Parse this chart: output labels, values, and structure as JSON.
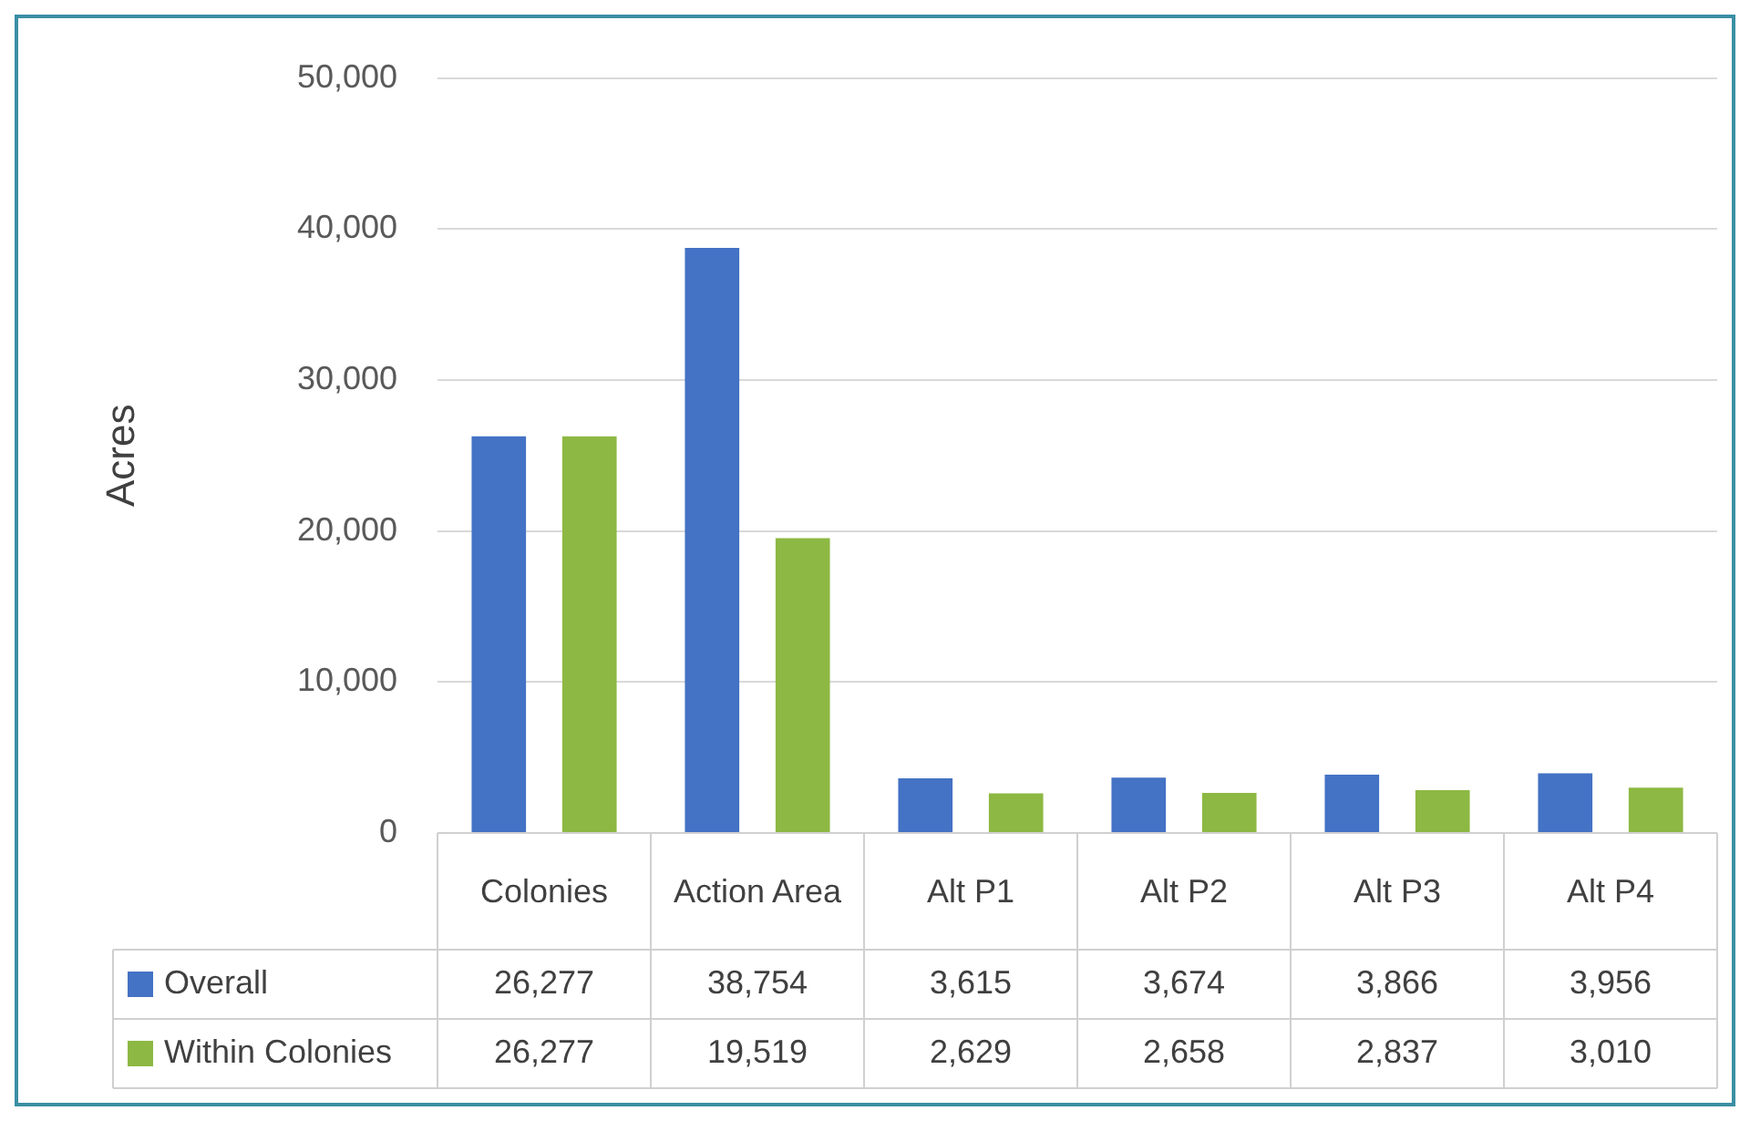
{
  "chart_data": {
    "type": "bar",
    "ylabel": "Acres",
    "categories": [
      "Colonies",
      "Action Area",
      "Alt P1",
      "Alt P2",
      "Alt P3",
      "Alt P4"
    ],
    "series": [
      {
        "name": "Overall",
        "color": "#4472c4",
        "values": [
          26277,
          38754,
          3615,
          3674,
          3866,
          3956
        ],
        "value_labels": [
          "26,277",
          "38,754",
          "3,615",
          "3,674",
          "3,866",
          "3,956"
        ]
      },
      {
        "name": "Within Colonies",
        "color": "#8db843",
        "values": [
          26277,
          19519,
          2629,
          2658,
          2837,
          3010
        ],
        "value_labels": [
          "26,277",
          "19,519",
          "2,629",
          "2,658",
          "2,837",
          "3,010"
        ]
      }
    ],
    "ylim": [
      0,
      50000
    ],
    "yticks": [
      {
        "value": 0,
        "label": "0"
      },
      {
        "value": 10000,
        "label": "10,000"
      },
      {
        "value": 20000,
        "label": "20,000"
      },
      {
        "value": 30000,
        "label": "30,000"
      },
      {
        "value": 40000,
        "label": "40,000"
      },
      {
        "value": 50000,
        "label": "50,000"
      }
    ],
    "grid": "y",
    "legend": "bottom left"
  }
}
